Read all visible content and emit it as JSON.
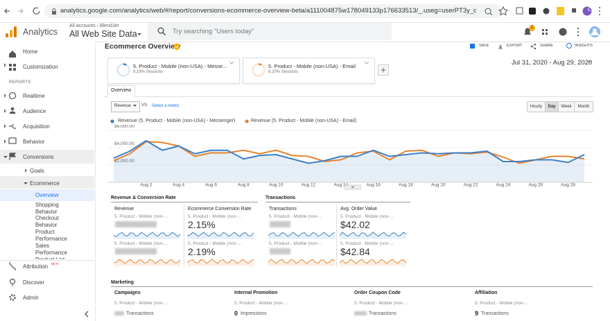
{
  "browser": {
    "url": "analytics.google.com/analytics/web/#/report/conversions-ecommerce-overview-beta/a111004875w178049133p176633513/_.useg=userPT3y_qmRSYO...",
    "profile": "Cs"
  },
  "header": {
    "app": "Analytics",
    "breadcrumb": "All accounts › BlendJet",
    "property": "All Web Site Data",
    "search_placeholder": "Try searching \"Users today\"",
    "notifications": "2"
  },
  "sidebar": {
    "items": [
      "Home",
      "Customization"
    ],
    "section": "REPORTS",
    "reports": [
      "Realtime",
      "Audience",
      "Acquisition",
      "Behavior",
      "Conversions"
    ],
    "conversions": [
      "Goals",
      "Ecommerce"
    ],
    "ecommerce": [
      "Overview",
      "Shopping Behavior",
      "Checkout Behavior",
      "Product Performance",
      "Sales Performance",
      "Product List"
    ],
    "bottom": [
      "Attribution",
      "Discover",
      "Admin"
    ],
    "beta": "BETA"
  },
  "report": {
    "title": "Ecommerce Overview",
    "actions": [
      "SAVE",
      "EXPORT",
      "SHARE",
      "INSIGHTS"
    ],
    "segments": [
      {
        "name": "5. Product - Mobile (non-USA) - Messe...",
        "share": "8.18% Sessions"
      },
      {
        "name": "5. Product - Mobile (non-USA) - Email",
        "share": "8.20% Sessions"
      }
    ],
    "date_range": "Jul 31, 2020 - Aug 29, 2020",
    "tab": "Overview",
    "metric": "Revenue",
    "vs": "VS.",
    "select_metric": "Select a metric",
    "granularity": [
      "Hourly",
      "Day",
      "Week",
      "Month"
    ]
  },
  "chart_data": {
    "type": "line",
    "categories": [
      null,
      null,
      "Aug 2",
      null,
      "Aug 4",
      null,
      "Aug 6",
      null,
      "Aug 8",
      null,
      "Aug 10",
      null,
      "Aug 12",
      null,
      "Aug 14",
      null,
      "Aug 16",
      null,
      "Aug 18",
      null,
      "Aug 20",
      null,
      "Aug 22",
      null,
      "Aug 24",
      null,
      "Aug 26",
      null,
      "Aug 28",
      null
    ],
    "series": [
      {
        "name": "Revenue (5. Product - Mobile (non-USA) - Messenger)",
        "color": "#3d80c6",
        "values": [
          2800,
          3600,
          4800,
          3700,
          4200,
          3300,
          3700,
          3700,
          2700,
          3100,
          3200,
          2700,
          2200,
          2500,
          3000,
          3000,
          3700,
          3000,
          3200,
          3400,
          3300,
          3400,
          3400,
          3600,
          2400,
          2400,
          2600,
          2600,
          2300,
          3200
        ]
      },
      {
        "name": "Revenue (5. Product - Mobile (non-USA) - Email)",
        "color": "#e8832f",
        "values": [
          2500,
          3300,
          4700,
          4600,
          4200,
          3000,
          3400,
          3400,
          3700,
          3300,
          3700,
          3100,
          3000,
          2400,
          2600,
          3400,
          3600,
          2600,
          3600,
          3700,
          3000,
          3400,
          3300,
          3500,
          2900,
          2200,
          2600,
          3000,
          3000,
          2700
        ]
      }
    ],
    "ylim": [
      0,
      6600
    ],
    "yticks": [
      {
        "value": 2000,
        "label": "$2,000.00"
      },
      {
        "value": 4000,
        "label": "$4,000.00"
      },
      {
        "value": 6000,
        "label": "$6,000.00"
      }
    ],
    "grid": true
  },
  "metrics": {
    "groups": [
      "Revenue & Conversion Rate",
      "Transactions"
    ],
    "cards": [
      {
        "title": "Revenue",
        "rows": [
          {
            "segment": "5. Product - Mobile (non-..."
          },
          {
            "segment": "5. Product - Mobile (non-..."
          }
        ]
      },
      {
        "title": "Ecommerce Conversion Rate",
        "rows": [
          {
            "segment": "5. Product - Mobile (non-...",
            "value": "2.15%"
          },
          {
            "segment": "5. Product - Mobile (non-...",
            "value": "2.19%"
          }
        ]
      },
      {
        "title": "Transactions",
        "rows": [
          {
            "segment": "5. Product - Mobile (non-..."
          },
          {
            "segment": "5. Product - Mobile (non-..."
          }
        ]
      },
      {
        "title": "Avg. Order Value",
        "rows": [
          {
            "segment": "5. Product - Mobile (non-...",
            "value": "$42.02"
          },
          {
            "segment": "5. Product - Mobile (non-...",
            "value": "$42.84"
          }
        ]
      }
    ]
  },
  "marketing": {
    "title": "Marketing",
    "columns": [
      {
        "title": "Campaigns",
        "segment": "5. Product - Mobile (non-...",
        "unit": "Transactions"
      },
      {
        "title": "Internal Promotion",
        "segment": "5. Product - Mobile (non-...",
        "value": 0,
        "unit": "Impressions"
      },
      {
        "title": "Order Coupon Code",
        "segment": "5. Product - Mobile (non-...",
        "unit": "Transactions"
      },
      {
        "title": "Affiliation",
        "segment": "5. Product - Mobile (non-...",
        "value": 9,
        "unit": "Transactions"
      }
    ]
  }
}
